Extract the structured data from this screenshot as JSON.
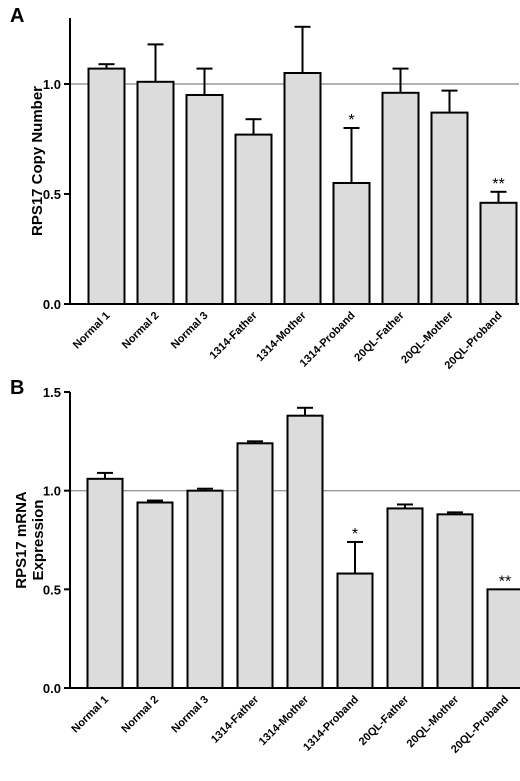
{
  "chart_data": [
    {
      "panel": "A",
      "type": "bar",
      "ylabel": "RPS17 Copy Number",
      "categories": [
        "Normal 1",
        "Normal 2",
        "Normal 3",
        "1314-Father",
        "1314-Mother",
        "1314-Proband",
        "20QL-Father",
        "20QL-Mother",
        "20QL-Proband"
      ],
      "values": [
        1.07,
        1.01,
        0.95,
        0.77,
        1.05,
        0.55,
        0.96,
        0.87,
        0.46
      ],
      "errors": [
        0.02,
        0.17,
        0.12,
        0.07,
        0.21,
        0.25,
        0.11,
        0.1,
        0.05
      ],
      "annotations": [
        "",
        "",
        "",
        "",
        "",
        "*",
        "",
        "",
        "**"
      ],
      "ylim": [
        0,
        1.3
      ],
      "yticks": [
        0,
        0.5,
        1.0
      ],
      "ytick_labels": [
        "0.0",
        "0.5",
        "1.0"
      ],
      "reference_line": 1.0,
      "bar_color": "#dcdcdc",
      "reference_color": "#999999"
    },
    {
      "panel": "B",
      "type": "bar",
      "ylabel": "RPS17 mRNA Expression",
      "ylabel_lines": [
        "RPS17 mRNA",
        "Expression"
      ],
      "categories": [
        "Normal 1",
        "Normal 2",
        "Normal 3",
        "1314-Father",
        "1314-Mother",
        "1314-Proband",
        "20QL-Father",
        "20QL-Mother",
        "20QL-Proband"
      ],
      "values": [
        1.06,
        0.94,
        1.0,
        1.24,
        1.38,
        0.58,
        0.91,
        0.88,
        0.5
      ],
      "errors": [
        0.03,
        0.01,
        0.01,
        0.01,
        0.04,
        0.16,
        0.02,
        0.01,
        0.0
      ],
      "annotations": [
        "",
        "",
        "",
        "",
        "",
        "*",
        "",
        "",
        "**"
      ],
      "ylim": [
        0,
        1.5
      ],
      "yticks": [
        0,
        0.5,
        1.0,
        1.5
      ],
      "ytick_labels": [
        "0.0",
        "0.5",
        "1.0",
        "1.5"
      ],
      "reference_line": 1.0,
      "bar_color": "#dcdcdc",
      "reference_color": "#999999"
    }
  ]
}
